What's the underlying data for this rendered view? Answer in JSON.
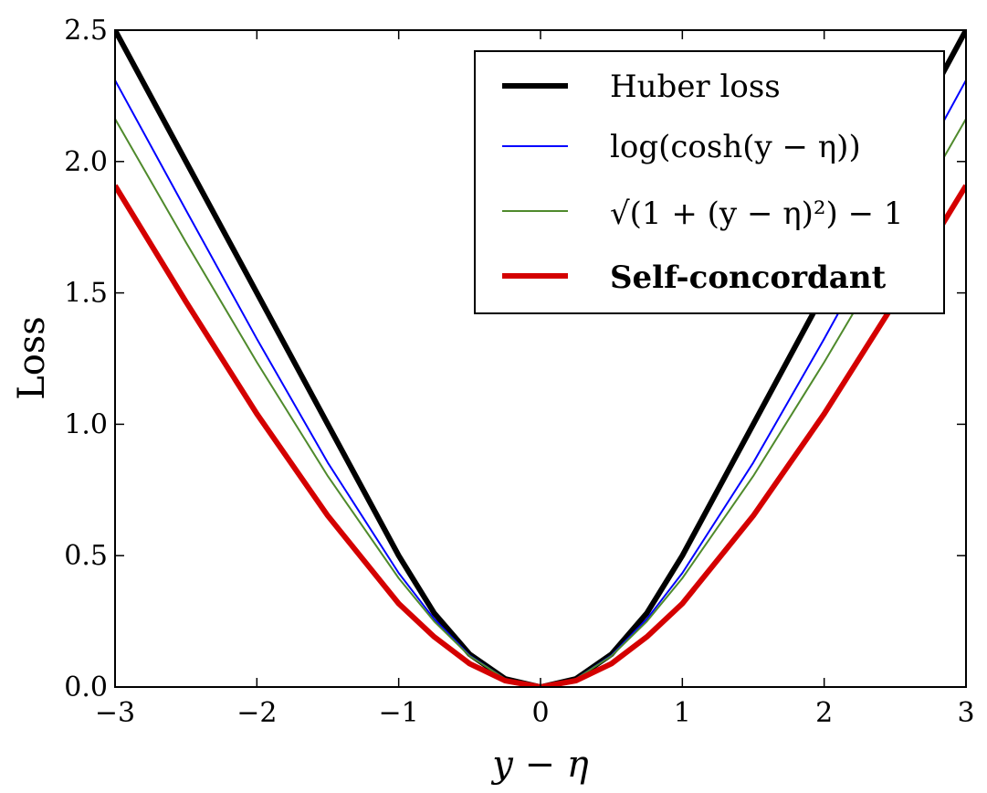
{
  "chart_data": {
    "type": "line",
    "x_range": [
      -3,
      3
    ],
    "ylim": [
      0,
      2.5
    ],
    "xlabel": "y − η",
    "ylabel": "Loss",
    "xticks": [
      -3,
      -2,
      -1,
      0,
      1,
      2,
      3
    ],
    "xtick_labels": [
      "−3",
      "−2",
      "−1",
      "0",
      "1",
      "2",
      "3"
    ],
    "yticks": [
      0.0,
      0.5,
      1.0,
      1.5,
      2.0,
      2.5
    ],
    "ytick_labels": [
      "0.0",
      "0.5",
      "1.0",
      "1.5",
      "2.0",
      "2.5"
    ],
    "legend_position": "top-right",
    "series": [
      {
        "name": "Huber loss",
        "color": "#000000",
        "bold": false,
        "x": [
          -3.0,
          -2.5,
          -2.0,
          -1.5,
          -1.0,
          -0.75,
          -0.5,
          -0.25,
          0.0,
          0.25,
          0.5,
          0.75,
          1.0,
          1.5,
          2.0,
          2.5,
          3.0
        ],
        "y": [
          2.5,
          2.0,
          1.5,
          1.0,
          0.5,
          0.28125,
          0.125,
          0.03125,
          0.0,
          0.03125,
          0.125,
          0.28125,
          0.5,
          1.0,
          1.5,
          2.0,
          2.5
        ]
      },
      {
        "name": "log(cosh(y − η))",
        "color": "#0000ff",
        "bold": false,
        "x": [
          -3.0,
          -2.5,
          -2.0,
          -1.5,
          -1.0,
          -0.75,
          -0.5,
          -0.25,
          0.0,
          0.25,
          0.5,
          0.75,
          1.0,
          1.5,
          2.0,
          2.5,
          3.0
        ],
        "y": [
          2.3093,
          1.815,
          1.325,
          0.8539,
          0.4338,
          0.2588,
          0.1201,
          0.0311,
          0.0,
          0.0311,
          0.1201,
          0.2588,
          0.4338,
          0.8539,
          1.325,
          1.815,
          2.3093
        ]
      },
      {
        "name": "√(1 + (y − η)²) − 1",
        "color": "#4f8a2c",
        "bold": false,
        "x": [
          -3.0,
          -2.5,
          -2.0,
          -1.5,
          -1.0,
          -0.75,
          -0.5,
          -0.25,
          0.0,
          0.25,
          0.5,
          0.75,
          1.0,
          1.5,
          2.0,
          2.5,
          3.0
        ],
        "y": [
          2.1623,
          1.6926,
          1.2361,
          0.8028,
          0.4142,
          0.25,
          0.118,
          0.0308,
          0.0,
          0.0308,
          0.118,
          0.25,
          0.4142,
          0.8028,
          1.2361,
          1.6926,
          2.1623
        ]
      },
      {
        "name": "Self-concordant",
        "color": "#d40000",
        "bold": true,
        "x": [
          -3.0,
          -2.5,
          -2.0,
          -1.5,
          -1.0,
          -0.75,
          -0.5,
          -0.25,
          0.0,
          0.25,
          0.5,
          0.75,
          1.0,
          1.5,
          2.0,
          2.5,
          3.0
        ],
        "y": [
          1.9083,
          1.4661,
          1.0396,
          0.6518,
          0.3175,
          0.1912,
          0.0889,
          0.0241,
          0.0,
          0.0241,
          0.0889,
          0.1912,
          0.3175,
          0.6518,
          1.0396,
          1.4661,
          1.9083
        ]
      }
    ]
  }
}
